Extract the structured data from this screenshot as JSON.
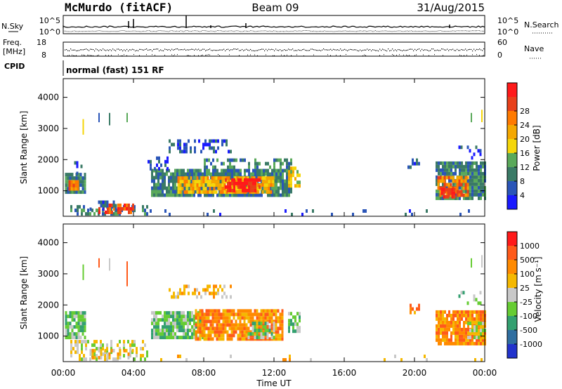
{
  "header": {
    "station": "McMurdo (fitACF)",
    "beam": "Beam 09",
    "date": "31/Aug/2015"
  },
  "noise_panel": {
    "left_label": "N.Sky",
    "right_label": "N.Search",
    "left_ticks": [
      "10^5",
      "10^0"
    ],
    "right_ticks": [
      "10^5",
      "10^0"
    ]
  },
  "freq_panel": {
    "left_label_line1": "Freq.",
    "left_label_line2": "[MHz]",
    "left_ticks": [
      "18",
      "8"
    ],
    "right_label": "Nave",
    "right_ticks": [
      "60",
      "0"
    ]
  },
  "cpid": {
    "label": "CPID",
    "text": "normal (fast) 151 RF"
  },
  "colors": {
    "power": [
      "#1a1aff",
      "#2a55b8",
      "#3a7a66",
      "#5aa95a",
      "#f5d60a",
      "#f5a800",
      "#ff7a00",
      "#e8401a",
      "#ff1a1a"
    ],
    "velocity": [
      "#2233cc",
      "#2f6ea0",
      "#33a070",
      "#66cc33",
      "#c8c8c8",
      "#f5b800",
      "#ff8a00",
      "#ff5a1a",
      "#ff1a1a"
    ]
  },
  "chart_data": [
    {
      "type": "heatmap",
      "name": "power",
      "ylabel": "Slant Range [km]",
      "yticks": [
        "1000",
        "2000",
        "3000",
        "4000"
      ],
      "colorbar_label": "Power [dB]",
      "colorbar_ticks": [
        "4",
        "8",
        "12",
        "16",
        "20",
        "24",
        "28"
      ],
      "xlim": [
        0,
        24
      ],
      "ylim": [
        180,
        4600
      ],
      "regions": [
        {
          "t0": 0.1,
          "t1": 1.3,
          "r0": 900,
          "r1": 1500,
          "level": 2,
          "density": 0.9
        },
        {
          "t0": 0.3,
          "t1": 0.9,
          "r0": 1000,
          "r1": 1300,
          "level": 6,
          "density": 0.85
        },
        {
          "t0": 0.5,
          "t1": 1.2,
          "r0": 1500,
          "r1": 2000,
          "level": 1,
          "density": 0.2
        },
        {
          "t0": 0.4,
          "t1": 4.8,
          "r0": 200,
          "r1": 450,
          "level": 2,
          "density": 0.5
        },
        {
          "t0": 2.0,
          "t1": 4.0,
          "r0": 250,
          "r1": 500,
          "level": 7,
          "density": 0.6
        },
        {
          "t0": 1.5,
          "t1": 3.0,
          "r0": 350,
          "r1": 650,
          "level": 1,
          "density": 0.35
        },
        {
          "t0": 5.0,
          "t1": 13.0,
          "r0": 800,
          "r1": 1700,
          "level": 2,
          "density": 0.9
        },
        {
          "t0": 6.5,
          "t1": 12.0,
          "r0": 900,
          "r1": 1400,
          "level": 5,
          "density": 0.85
        },
        {
          "t0": 9.2,
          "t1": 11.2,
          "r0": 950,
          "r1": 1300,
          "level": 8,
          "density": 0.7
        },
        {
          "t0": 6.0,
          "t1": 9.5,
          "r0": 2200,
          "r1": 2600,
          "level": 1,
          "density": 0.45
        },
        {
          "t0": 4.8,
          "t1": 6.0,
          "r0": 1650,
          "r1": 2100,
          "level": 1,
          "density": 0.35
        },
        {
          "t0": 12.8,
          "t1": 13.5,
          "r0": 1100,
          "r1": 1700,
          "level": 4,
          "density": 0.7
        },
        {
          "t0": 8.0,
          "t1": 13.0,
          "r0": 1700,
          "r1": 2000,
          "level": 2,
          "density": 0.4
        },
        {
          "t0": 21.2,
          "t1": 24.0,
          "r0": 700,
          "r1": 1900,
          "level": 2,
          "density": 0.9
        },
        {
          "t0": 21.3,
          "t1": 23.0,
          "r0": 800,
          "r1": 1400,
          "level": 6,
          "density": 0.8
        },
        {
          "t0": 21.5,
          "t1": 22.3,
          "r0": 750,
          "r1": 1000,
          "level": 8,
          "density": 0.7
        },
        {
          "t0": 22.5,
          "t1": 23.8,
          "r0": 2000,
          "r1": 2400,
          "level": 1,
          "density": 0.35
        },
        {
          "t0": 19.6,
          "t1": 20.3,
          "r0": 1700,
          "r1": 2000,
          "level": 1,
          "density": 0.4
        },
        {
          "t0": 4.8,
          "t1": 24.0,
          "r0": 180,
          "r1": 400,
          "level": 1,
          "density": 0.07
        }
      ],
      "stripes": [
        {
          "t": 1.1,
          "r0": 2800,
          "r1": 3300,
          "level": 4
        },
        {
          "t": 2.0,
          "r0": 3200,
          "r1": 3500,
          "level": 1
        },
        {
          "t": 2.6,
          "r0": 3100,
          "r1": 3500,
          "level": 2
        },
        {
          "t": 3.6,
          "r0": 3200,
          "r1": 3500,
          "level": 3
        },
        {
          "t": 23.2,
          "r0": 3200,
          "r1": 3500,
          "level": 3
        },
        {
          "t": 23.8,
          "r0": 3200,
          "r1": 3600,
          "level": 4
        }
      ]
    },
    {
      "type": "heatmap",
      "name": "velocity",
      "ylabel": "Slant Range [km]",
      "yticks": [
        "1000",
        "2000",
        "3000",
        "4000"
      ],
      "colorbar_label": "Velocity [m s⁻¹]",
      "colorbar_ticks": [
        "1000",
        "500",
        "100",
        "25",
        "-25",
        "-100",
        "-500",
        "-1000"
      ],
      "xlabel": "Time UT",
      "xticks": [
        "00:00",
        "04:00",
        "08:00",
        "12:00",
        "16:00",
        "20:00",
        "00:00"
      ],
      "xlim": [
        0,
        24
      ],
      "ylim": [
        180,
        4600
      ],
      "regions": [
        {
          "t0": 0.1,
          "t1": 1.3,
          "r0": 900,
          "r1": 1700,
          "level": 3,
          "density": 0.9
        },
        {
          "t0": 0.4,
          "t1": 4.8,
          "r0": 200,
          "r1": 800,
          "level": 4,
          "density": 0.4
        },
        {
          "t0": 1.5,
          "t1": 4.0,
          "r0": 250,
          "r1": 500,
          "level": 5,
          "density": 0.4
        },
        {
          "t0": 5.0,
          "t1": 8.0,
          "r0": 900,
          "r1": 1700,
          "level": 3,
          "density": 0.85
        },
        {
          "t0": 7.5,
          "t1": 12.5,
          "r0": 850,
          "r1": 1800,
          "level": 6,
          "density": 0.9
        },
        {
          "t0": 10.5,
          "t1": 12.0,
          "r0": 900,
          "r1": 1400,
          "level": 3,
          "density": 0.5
        },
        {
          "t0": 6.0,
          "t1": 9.5,
          "r0": 2200,
          "r1": 2600,
          "level": 5,
          "density": 0.35
        },
        {
          "t0": 12.8,
          "t1": 13.5,
          "r0": 1100,
          "r1": 1700,
          "level": 3,
          "density": 0.6
        },
        {
          "t0": 21.2,
          "t1": 24.0,
          "r0": 700,
          "r1": 1800,
          "level": 6,
          "density": 0.9
        },
        {
          "t0": 23.0,
          "t1": 24.0,
          "r0": 900,
          "r1": 1400,
          "level": 4,
          "density": 0.6
        },
        {
          "t0": 22.5,
          "t1": 23.8,
          "r0": 2000,
          "r1": 2400,
          "level": 3,
          "density": 0.3
        },
        {
          "t0": 19.6,
          "t1": 20.3,
          "r0": 1700,
          "r1": 2000,
          "level": 6,
          "density": 0.4
        },
        {
          "t0": 4.8,
          "t1": 24.0,
          "r0": 180,
          "r1": 400,
          "level": 5,
          "density": 0.07
        }
      ],
      "stripes": [
        {
          "t": 1.1,
          "r0": 2800,
          "r1": 3300,
          "level": 3
        },
        {
          "t": 2.0,
          "r0": 3200,
          "r1": 3500,
          "level": 7
        },
        {
          "t": 2.6,
          "r0": 3100,
          "r1": 3500,
          "level": 4
        },
        {
          "t": 3.6,
          "r0": 2600,
          "r1": 3400,
          "level": 7
        },
        {
          "t": 23.2,
          "r0": 3200,
          "r1": 3500,
          "level": 3
        },
        {
          "t": 23.8,
          "r0": 3200,
          "r1": 3600,
          "level": 4
        }
      ]
    }
  ]
}
